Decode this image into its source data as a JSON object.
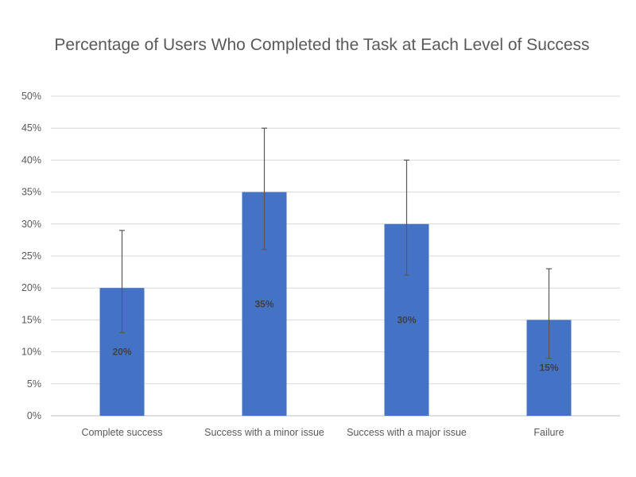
{
  "chart_data": {
    "type": "bar",
    "title": "Percentage of Users Who Completed the Task at Each Level of Success",
    "categories": [
      "Complete success",
      "Success with a minor issue",
      "Success with a major issue",
      "Failure"
    ],
    "values": [
      20,
      35,
      30,
      15
    ],
    "data_labels": [
      "20%",
      "35%",
      "30%",
      "15%"
    ],
    "error_low": [
      13,
      26,
      22,
      9
    ],
    "error_high": [
      29,
      45,
      40,
      23
    ],
    "y_ticks": [
      "0%",
      "5%",
      "10%",
      "15%",
      "20%",
      "25%",
      "30%",
      "35%",
      "40%",
      "45%",
      "50%"
    ],
    "ylim": [
      0,
      50
    ],
    "grid": true,
    "legend": "none",
    "bar_color": "#4472C4",
    "error_bar_color": "#595959",
    "grid_color": "#D9D9D9"
  }
}
